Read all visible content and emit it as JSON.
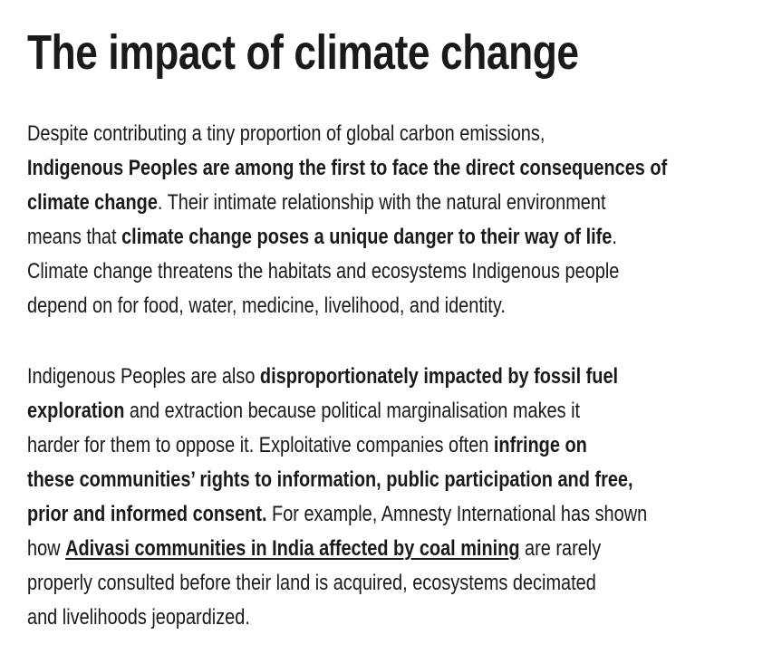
{
  "article": {
    "title": "The impact of climate change",
    "p1": {
      "l1": "Despite contributing a tiny proportion of global carbon emissions,",
      "l2_bold": "Indigenous Peoples are among the first to face the direct consequences of",
      "l3_bold": "climate change",
      "l3_rest": ". Their intimate relationship with the natural environment",
      "l4_pre": "means that ",
      "l4_bold": "climate change poses a unique danger to their way of life",
      "l4_post": ".",
      "l5": "Climate change threatens the habitats and ecosystems Indigenous people",
      "l6": "depend on for food, water, medicine, livelihood, and identity."
    },
    "p2": {
      "l1_pre": "Indigenous Peoples are also ",
      "l1_bold": "disproportionately impacted by fossil fuel",
      "l2_bold": "exploration",
      "l2_rest": " and extraction because political marginalisation makes it",
      "l3_pre": "harder for them to oppose it. Exploitative companies often ",
      "l3_bold": "infringe on",
      "l4_bold": "these communities’ rights to information, public participation and free,",
      "l5_bold": "prior and informed consent.",
      "l5_rest": " For example, Amnesty International has shown",
      "l6_pre": "how ",
      "l6_link": "Adivasi communities in India affected by coal mining",
      "l6_post": " are rarely",
      "l7": "properly consulted before their land is acquired, ecosystems decimated",
      "l8": "and livelihoods jeopardized."
    }
  }
}
